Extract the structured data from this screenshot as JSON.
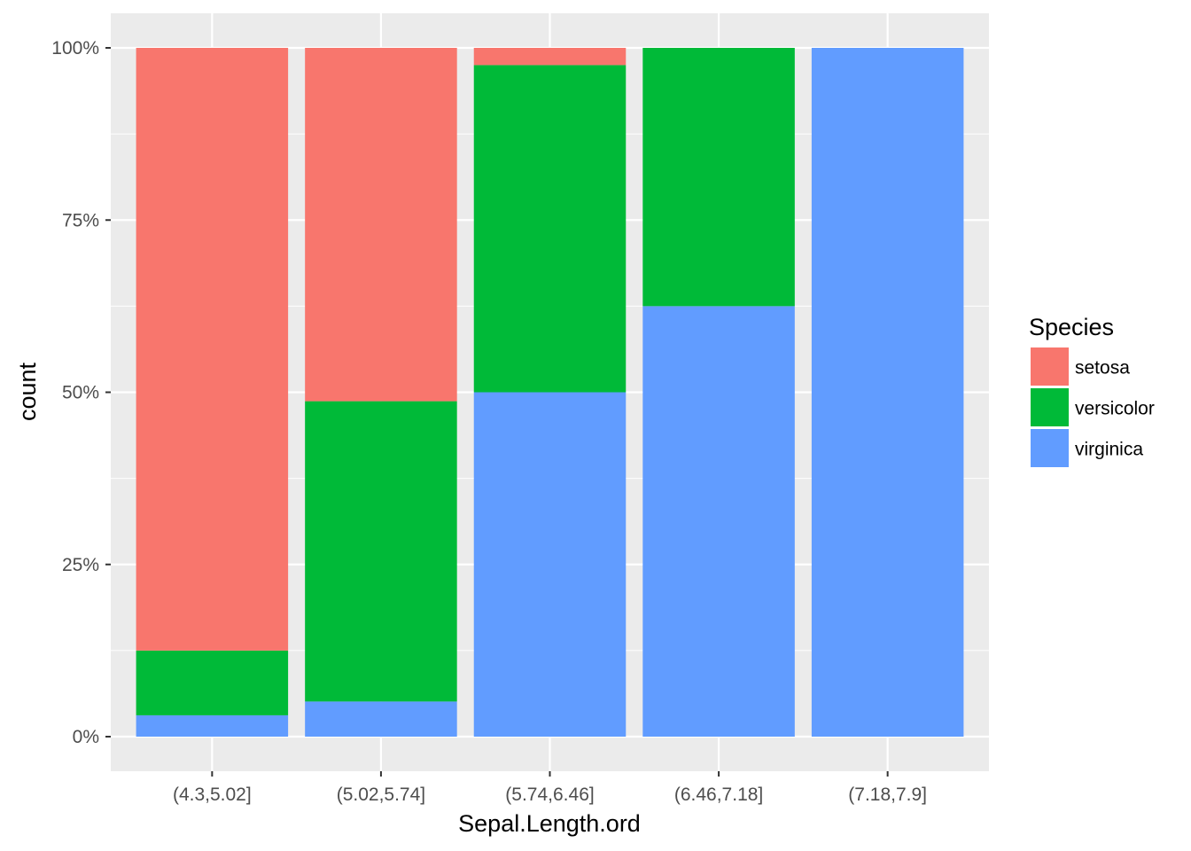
{
  "chart_data": {
    "type": "bar",
    "stacked": true,
    "position": "fill",
    "categories": [
      "(4.3,5.02]",
      "(5.02,5.74]",
      "(5.74,6.46]",
      "(6.46,7.18]",
      "(7.18,7.9]"
    ],
    "series": [
      {
        "name": "setosa",
        "color": "#F8766D",
        "values": [
          0.875,
          0.513,
          0.025,
          0.0,
          0.0
        ]
      },
      {
        "name": "versicolor",
        "color": "#00BA38",
        "values": [
          0.094,
          0.436,
          0.475,
          0.375,
          0.0
        ]
      },
      {
        "name": "virginica",
        "color": "#619CFF",
        "values": [
          0.031,
          0.051,
          0.5,
          0.625,
          1.0
        ]
      }
    ],
    "stack_order": [
      "virginica",
      "versicolor",
      "setosa"
    ],
    "xlabel": "Sepal.Length.ord",
    "ylabel": "count",
    "ylim": [
      0,
      1
    ],
    "yticks": [
      0,
      0.25,
      0.5,
      0.75,
      1.0
    ],
    "ytick_labels": [
      "0%",
      "25%",
      "50%",
      "75%",
      "100%"
    ],
    "legend": {
      "title": "Species",
      "placement": "right"
    },
    "grid": true,
    "panel_background": "#EBEBEB",
    "grid_color": "#FFFFFF"
  }
}
